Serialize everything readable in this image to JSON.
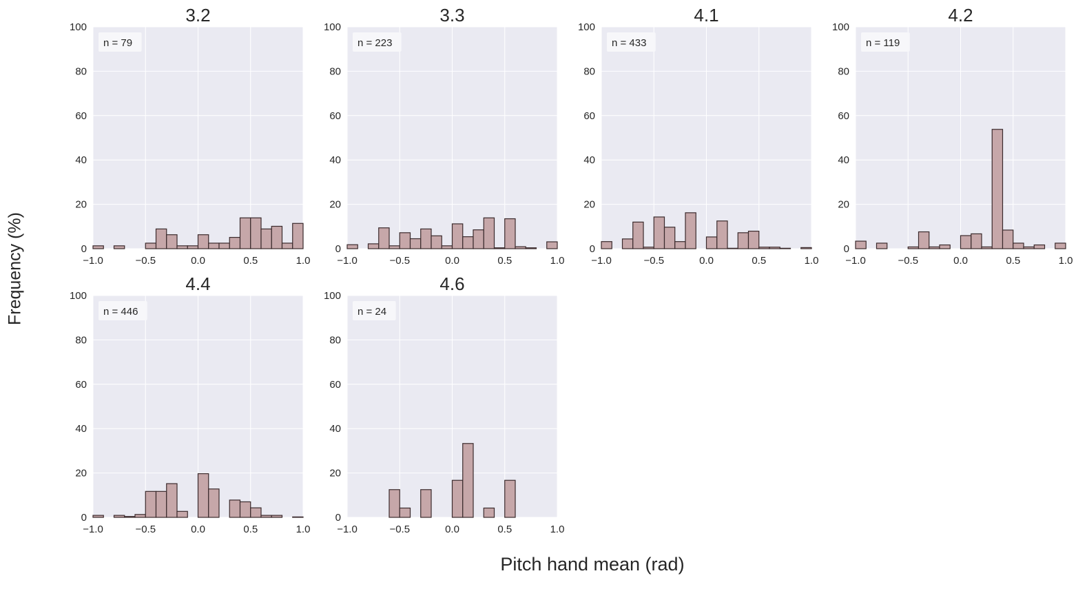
{
  "figure": {
    "xlabel": "Pitch hand mean (rad)",
    "ylabel": "Frequency (%)"
  },
  "colors": {
    "axes_bg": "#EAEAF2",
    "grid": "#FFFFFF",
    "bar_fill": "#C6A7A9",
    "bar_edge": "#3A2A2C",
    "text": "#262626",
    "annotation_bg": "#F7F7FA"
  },
  "chart_data": [
    {
      "type": "bar",
      "title": "3.2",
      "annotation": "n = 79",
      "xlim": [
        -1.0,
        1.0
      ],
      "ylim": [
        0,
        100
      ],
      "xticks": [
        "−1.0",
        "−0.5",
        "0.0",
        "0.5",
        "1.0"
      ],
      "yticks": [
        "0",
        "20",
        "40",
        "60",
        "80",
        "100"
      ],
      "bin_width": 0.1,
      "bin_starts": [
        -1.0,
        -0.9,
        -0.8,
        -0.7,
        -0.6,
        -0.5,
        -0.4,
        -0.3,
        -0.2,
        -0.1,
        0.0,
        0.1,
        0.2,
        0.3,
        0.4,
        0.5,
        0.6,
        0.7,
        0.8,
        0.9
      ],
      "values": [
        1.3,
        0,
        1.3,
        0,
        0,
        2.5,
        8.9,
        6.3,
        1.3,
        1.3,
        6.3,
        2.5,
        2.5,
        5.1,
        13.9,
        13.9,
        8.9,
        10.1,
        2.5,
        11.4
      ]
    },
    {
      "type": "bar",
      "title": "3.3",
      "annotation": "n = 223",
      "xlim": [
        -1.0,
        1.0
      ],
      "ylim": [
        0,
        100
      ],
      "xticks": [
        "−1.0",
        "−0.5",
        "0.0",
        "0.5",
        "1.0"
      ],
      "yticks": [
        "0",
        "20",
        "40",
        "60",
        "80",
        "100"
      ],
      "bin_width": 0.1,
      "bin_starts": [
        -1.0,
        -0.9,
        -0.8,
        -0.7,
        -0.6,
        -0.5,
        -0.4,
        -0.3,
        -0.2,
        -0.1,
        0.0,
        0.1,
        0.2,
        0.3,
        0.4,
        0.5,
        0.6,
        0.7,
        0.8,
        0.9
      ],
      "values": [
        1.8,
        0,
        2.2,
        9.4,
        1.3,
        7.2,
        4.5,
        8.9,
        5.8,
        1.3,
        11.2,
        5.4,
        8.5,
        13.9,
        0.4,
        13.5,
        0.9,
        0.4,
        0,
        3.1
      ]
    },
    {
      "type": "bar",
      "title": "4.1",
      "annotation": "n = 433",
      "xlim": [
        -1.0,
        1.0
      ],
      "ylim": [
        0,
        100
      ],
      "xticks": [
        "−1.0",
        "−0.5",
        "0.0",
        "0.5",
        "1.0"
      ],
      "yticks": [
        "0",
        "20",
        "40",
        "60",
        "80",
        "100"
      ],
      "bin_width": 0.1,
      "bin_starts": [
        -1.0,
        -0.9,
        -0.8,
        -0.7,
        -0.6,
        -0.5,
        -0.4,
        -0.3,
        -0.2,
        -0.1,
        0.0,
        0.1,
        0.2,
        0.3,
        0.4,
        0.5,
        0.6,
        0.7,
        0.8,
        0.9
      ],
      "values": [
        3.2,
        0,
        4.4,
        12.0,
        0.7,
        14.3,
        9.7,
        3.2,
        16.2,
        0,
        5.3,
        12.5,
        0.2,
        7.2,
        7.9,
        0.7,
        0.7,
        0.2,
        0,
        0.5
      ]
    },
    {
      "type": "bar",
      "title": "4.2",
      "annotation": "n = 119",
      "xlim": [
        -1.0,
        1.0
      ],
      "ylim": [
        0,
        100
      ],
      "xticks": [
        "−1.0",
        "−0.5",
        "0.0",
        "0.5",
        "1.0"
      ],
      "yticks": [
        "0",
        "20",
        "40",
        "60",
        "80",
        "100"
      ],
      "bin_width": 0.1,
      "bin_starts": [
        -1.0,
        -0.9,
        -0.8,
        -0.7,
        -0.6,
        -0.5,
        -0.4,
        -0.3,
        -0.2,
        -0.1,
        0.0,
        0.1,
        0.2,
        0.3,
        0.4,
        0.5,
        0.6,
        0.7,
        0.8,
        0.9
      ],
      "values": [
        3.4,
        0,
        2.5,
        0,
        0,
        0.8,
        7.6,
        0.8,
        1.7,
        0,
        5.9,
        6.7,
        0.8,
        53.8,
        8.4,
        2.5,
        0.8,
        1.7,
        0,
        2.5
      ]
    },
    {
      "type": "bar",
      "title": "4.4",
      "annotation": "n = 446",
      "xlim": [
        -1.0,
        1.0
      ],
      "ylim": [
        0,
        100
      ],
      "xticks": [
        "−1.0",
        "−0.5",
        "0.0",
        "0.5",
        "1.0"
      ],
      "yticks": [
        "0",
        "20",
        "40",
        "60",
        "80",
        "100"
      ],
      "bin_width": 0.1,
      "bin_starts": [
        -1.0,
        -0.9,
        -0.8,
        -0.7,
        -0.6,
        -0.5,
        -0.4,
        -0.3,
        -0.2,
        -0.1,
        0.0,
        0.1,
        0.2,
        0.3,
        0.4,
        0.5,
        0.6,
        0.7,
        0.8,
        0.9
      ],
      "values": [
        0.9,
        0,
        0.9,
        0.4,
        1.3,
        11.7,
        11.7,
        15.2,
        2.7,
        0,
        19.7,
        12.8,
        0,
        7.8,
        7.0,
        4.3,
        0.9,
        0.9,
        0,
        0.2
      ]
    },
    {
      "type": "bar",
      "title": "4.6",
      "annotation": "n = 24",
      "xlim": [
        -1.0,
        1.0
      ],
      "ylim": [
        0,
        100
      ],
      "xticks": [
        "−1.0",
        "−0.5",
        "0.0",
        "0.5",
        "1.0"
      ],
      "yticks": [
        "0",
        "20",
        "40",
        "60",
        "80",
        "100"
      ],
      "bin_width": 0.1,
      "bin_starts": [
        -1.0,
        -0.9,
        -0.8,
        -0.7,
        -0.6,
        -0.5,
        -0.4,
        -0.3,
        -0.2,
        -0.1,
        0.0,
        0.1,
        0.2,
        0.3,
        0.4,
        0.5,
        0.6,
        0.7,
        0.8,
        0.9
      ],
      "values": [
        0,
        0,
        0,
        0,
        12.5,
        4.2,
        0,
        12.5,
        0,
        0,
        16.7,
        33.3,
        0,
        4.2,
        0,
        16.7,
        0,
        0,
        0,
        0
      ]
    }
  ]
}
